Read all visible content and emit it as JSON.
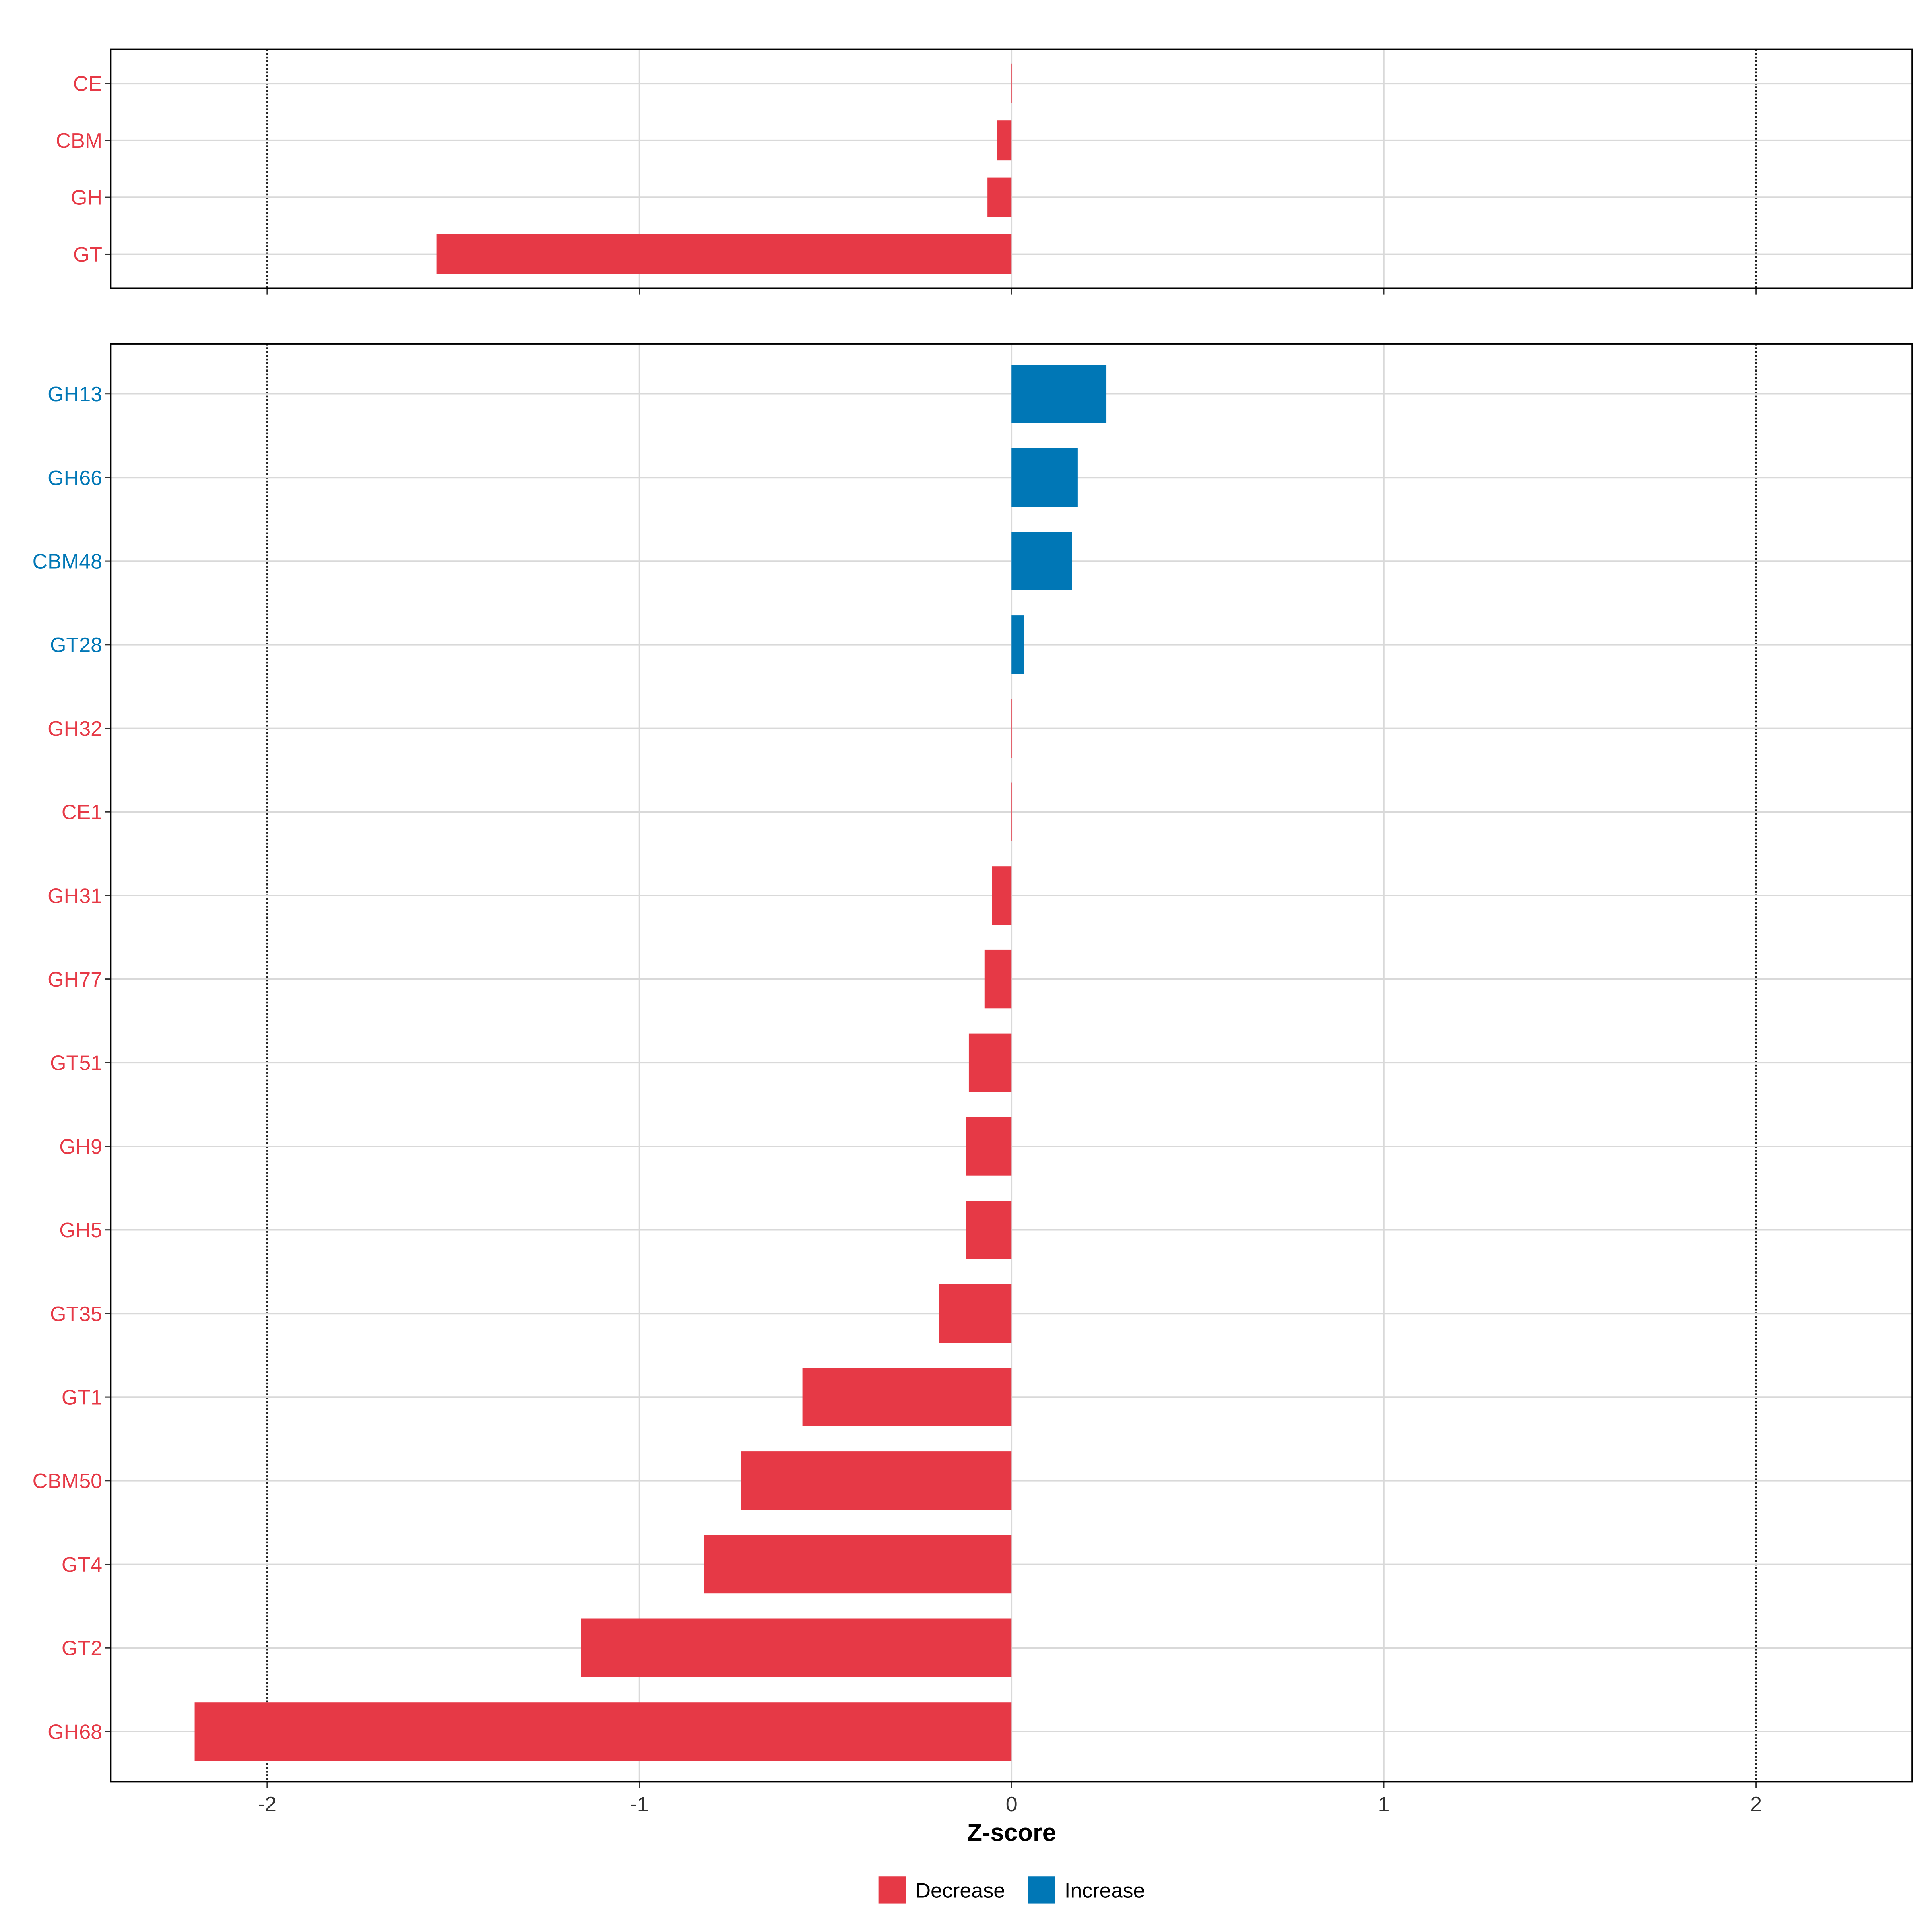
{
  "chart_data": {
    "type": "bar",
    "orientation": "horizontal",
    "xlabel": "Z-score",
    "xlim": [
      -2.42,
      2.42
    ],
    "xticks": [
      -2,
      -1,
      0,
      1,
      2
    ],
    "xtick_labels": [
      "-2",
      "-1",
      "0",
      "1",
      "2"
    ],
    "reference_lines": [
      -2,
      2
    ],
    "grid": true,
    "legend": {
      "placement": "bottom",
      "entries": [
        {
          "label": "Decrease",
          "color": "#E63946"
        },
        {
          "label": "Increase",
          "color": "#0077B6"
        }
      ]
    },
    "colors": {
      "Decrease": "#E63946",
      "Increase": "#0077B6"
    },
    "panels": [
      {
        "categories": [
          "CE",
          "CBM",
          "GH",
          "GT"
        ],
        "values": [
          0,
          -0.04,
          -0.065,
          -1.545
        ]
      },
      {
        "categories": [
          "GH13",
          "GH66",
          "CBM48",
          "GT28",
          "GH32",
          "CE1",
          "GH31",
          "GH77",
          "GT51",
          "GH9",
          "GH5",
          "GT35",
          "GT1",
          "CBM50",
          "GT4",
          "GT2",
          "GH68"
        ],
        "values": [
          0.255,
          0.178,
          0.162,
          0.033,
          0,
          0,
          -0.053,
          -0.073,
          -0.115,
          -0.123,
          -0.123,
          -0.195,
          -0.562,
          -0.727,
          -0.826,
          -1.157,
          -2.195
        ],
        "direction": [
          "Increase",
          "Increase",
          "Increase",
          "Increase",
          "Decrease",
          "Decrease",
          "Decrease",
          "Decrease",
          "Decrease",
          "Decrease",
          "Decrease",
          "Decrease",
          "Decrease",
          "Decrease",
          "Decrease",
          "Decrease",
          "Decrease"
        ]
      }
    ]
  }
}
